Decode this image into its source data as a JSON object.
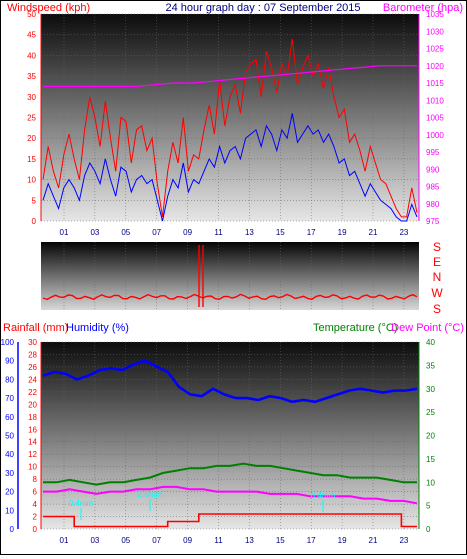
{
  "header": {
    "left_title": "Windspeed (kph)",
    "center_title": "24 hour graph day : 07 September 2015",
    "right_title": "Barometer (hpa)"
  },
  "wind_panel": {
    "direction_labels": [
      "S",
      "E",
      "N",
      "W",
      "S"
    ]
  },
  "bottom_panel": {
    "rain_label": "Rainfall (mm)",
    "humidity_label": "Humidity (%)",
    "temp_label": "Temperature (°C)",
    "dew_label": "Dew Point (°C)"
  },
  "colors": {
    "windspeed": "#ff0000",
    "wind_avg": "#0000ff",
    "barometer": "#ff00ff",
    "wind_dir": "#ff0000",
    "humidity": "#0000ff",
    "temperature": "#008000",
    "dew_point": "#ff00ff",
    "rainfall": "#ff0000",
    "rain_annotation": "#00ffff"
  },
  "chart_data": [
    {
      "type": "line",
      "x_tick_labels": [
        "01",
        "03",
        "05",
        "07",
        "09",
        "11",
        "13",
        "15",
        "17",
        "19",
        "21",
        "23"
      ],
      "ylim": [
        0,
        50
      ],
      "y_ticks": [
        0,
        5,
        10,
        15,
        20,
        25,
        30,
        35,
        40,
        45,
        50
      ],
      "y2lim": [
        975,
        1035
      ],
      "y2_ticks": [
        975,
        980,
        985,
        990,
        995,
        1000,
        1005,
        1010,
        1015,
        1020,
        1025,
        1030,
        1035
      ],
      "series": [
        {
          "key": "gust",
          "axis": "y",
          "values": [
            10,
            18,
            12,
            8,
            16,
            21,
            15,
            10,
            22,
            30,
            25,
            18,
            29,
            20,
            12,
            25,
            24,
            14,
            22,
            23,
            17,
            20,
            9,
            1,
            12,
            19,
            14,
            25,
            12,
            16,
            15,
            22,
            28,
            21,
            34,
            23,
            30,
            33,
            26,
            36,
            38,
            39,
            30,
            41,
            37,
            31,
            38,
            35,
            44,
            33,
            37,
            40,
            35,
            38,
            32,
            37,
            30,
            25,
            27,
            19,
            21,
            17,
            12,
            18,
            14,
            10,
            9,
            6,
            3,
            1,
            1,
            8,
            2
          ]
        },
        {
          "key": "average",
          "axis": "y",
          "values": [
            5,
            9,
            6,
            3,
            8,
            10,
            8,
            5,
            11,
            14,
            12,
            9,
            15,
            10,
            6,
            13,
            12,
            7,
            10,
            11,
            9,
            10,
            5,
            0,
            6,
            10,
            8,
            14,
            7,
            10,
            9,
            12,
            15,
            13,
            18,
            14,
            17,
            18,
            15,
            20,
            21,
            22,
            18,
            23,
            21,
            17,
            22,
            20,
            26,
            19,
            21,
            23,
            21,
            22,
            19,
            21,
            18,
            14,
            15,
            11,
            12,
            9,
            6,
            9,
            7,
            5,
            4,
            3,
            1,
            0,
            0,
            4,
            1
          ]
        },
        {
          "key": "barometer",
          "axis": "y2",
          "values": [
            1014,
            1014,
            1014,
            1014,
            1014,
            1014,
            1014.5,
            1015,
            1015,
            1015.5,
            1016,
            1016.5,
            1017,
            1017.5,
            1018,
            1018.5,
            1019,
            1019.5,
            1020,
            1020,
            1020
          ]
        }
      ]
    },
    {
      "type": "line",
      "x_tick_labels": [
        "01",
        "03",
        "05",
        "07",
        "09",
        "11",
        "13",
        "15",
        "17",
        "19",
        "21",
        "23"
      ],
      "left_axis_humidity": {
        "ylim": [
          0,
          100
        ],
        "ticks": [
          0,
          10,
          20,
          30,
          40,
          50,
          60,
          70,
          80,
          90,
          100
        ]
      },
      "left_axis_rain": {
        "ylim": [
          0,
          30
        ],
        "ticks": [
          0,
          2,
          4,
          6,
          8,
          10,
          12,
          14,
          16,
          18,
          20,
          22,
          24,
          26,
          28,
          30
        ]
      },
      "right_axis_temp": {
        "ylim": [
          0,
          40
        ],
        "ticks": [
          0,
          5,
          10,
          15,
          20,
          25,
          30,
          35,
          40
        ]
      },
      "series": [
        {
          "key": "humidity",
          "axis": "humidity",
          "values": [
            82,
            84,
            83,
            80,
            82,
            85,
            86,
            85,
            88,
            90,
            87,
            84,
            76,
            72,
            71,
            75,
            72,
            70,
            70,
            69,
            71,
            70,
            68,
            69,
            68,
            70,
            72,
            74,
            75,
            74,
            73,
            74,
            74,
            75
          ]
        },
        {
          "key": "temperature",
          "axis": "temp",
          "values": [
            10,
            10,
            10.5,
            10,
            9.5,
            10,
            10,
            10.5,
            11,
            12,
            12.5,
            13,
            13,
            13.5,
            13.5,
            14,
            13.5,
            13.5,
            13,
            12.5,
            12,
            11.5,
            11.5,
            11,
            11,
            11,
            10.5,
            10,
            10
          ]
        },
        {
          "key": "dew_point",
          "axis": "temp",
          "values": [
            8,
            8,
            8.5,
            8,
            7.5,
            8,
            8,
            8.5,
            8.5,
            9,
            9,
            8.5,
            8.5,
            8,
            8,
            8,
            8,
            7.5,
            7.5,
            7.5,
            7,
            7,
            7,
            7,
            6.5,
            6.5,
            6,
            6,
            5.5
          ]
        },
        {
          "key": "rainfall",
          "axis": "rain",
          "values": [
            2,
            2,
            0.4,
            0.4,
            0.4,
            0.4,
            0.4,
            0.4,
            1.2,
            1.2,
            2.4,
            2.4,
            2.4,
            2.4,
            2.4,
            2.4,
            2.4,
            2.4,
            2.4,
            2.4,
            2.4,
            2.4,
            2.4,
            0.4
          ]
        }
      ],
      "annotations": [
        "0.4mm",
        "2.0mm",
        "0.4mm"
      ]
    }
  ]
}
